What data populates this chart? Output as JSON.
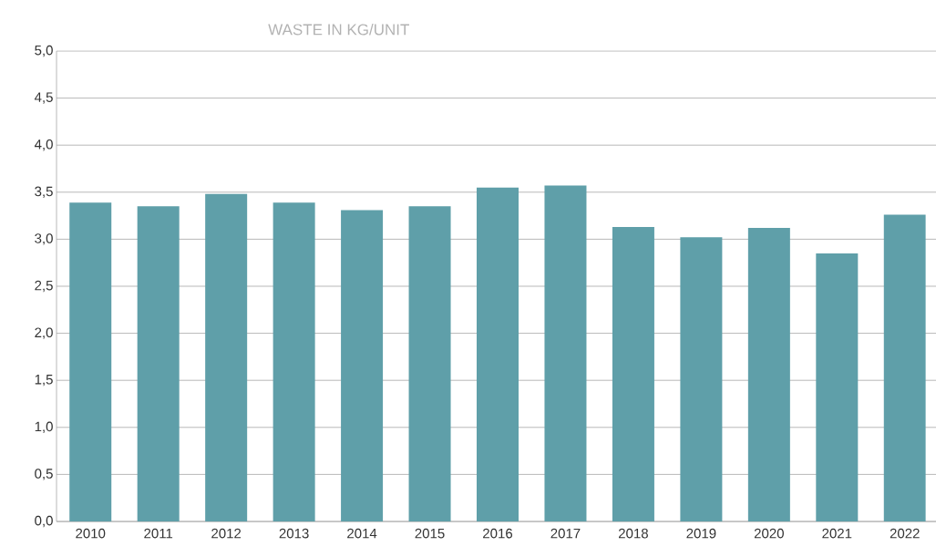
{
  "chart_data": {
    "type": "bar",
    "title": "WASTE IN KG/UNIT",
    "categories": [
      "2010",
      "2011",
      "2012",
      "2013",
      "2014",
      "2015",
      "2016",
      "2017",
      "2018",
      "2019",
      "2020",
      "2021",
      "2022"
    ],
    "values": [
      3.39,
      3.35,
      3.48,
      3.39,
      3.31,
      3.35,
      3.55,
      3.57,
      3.13,
      3.02,
      3.12,
      2.85,
      3.26
    ],
    "color": "#5f9fa9",
    "ylim": [
      0,
      5
    ],
    "yticks": [
      {
        "value": 0,
        "label": "0,0"
      },
      {
        "value": 0.5,
        "label": "0,5"
      },
      {
        "value": 1,
        "label": "1,0"
      },
      {
        "value": 1.5,
        "label": "1,5"
      },
      {
        "value": 2,
        "label": "2,0"
      },
      {
        "value": 2.5,
        "label": "2,5"
      },
      {
        "value": 3,
        "label": "3,0"
      },
      {
        "value": 3.5,
        "label": "3,5"
      },
      {
        "value": 4,
        "label": "4,0"
      },
      {
        "value": 4.5,
        "label": "4,5"
      },
      {
        "value": 5,
        "label": "5,0"
      }
    ],
    "grid": "y"
  }
}
